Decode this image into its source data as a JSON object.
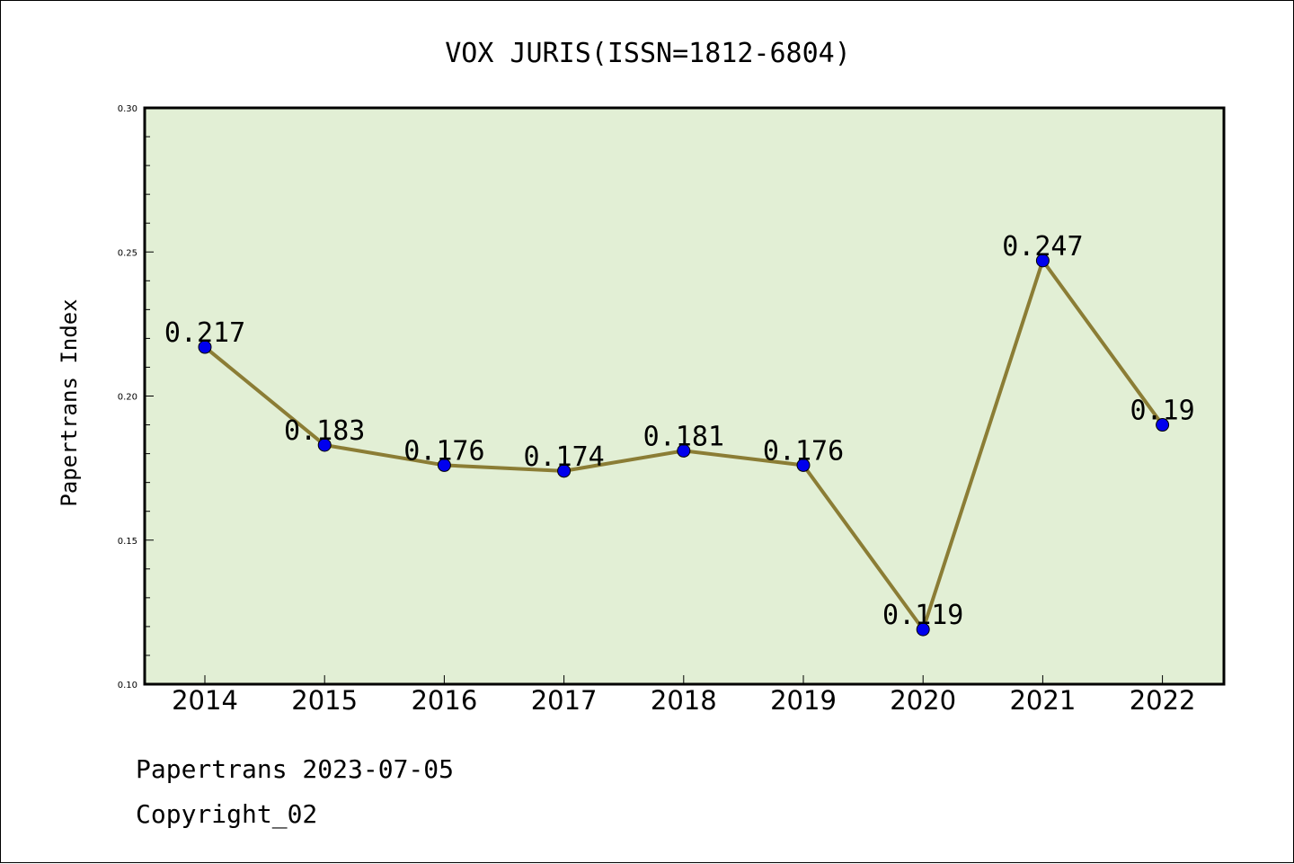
{
  "chart_data": {
    "type": "line",
    "title": "VOX JURIS(ISSN=1812-6804)",
    "xlabel": "",
    "ylabel": "Papertrans Index",
    "categories": [
      "2014",
      "2015",
      "2016",
      "2017",
      "2018",
      "2019",
      "2020",
      "2021",
      "2022"
    ],
    "series": [
      {
        "values": [
          0.217,
          0.183,
          0.176,
          0.174,
          0.181,
          0.176,
          0.119,
          0.247,
          0.19
        ],
        "data_labels": [
          "0.217",
          "0.183",
          "0.176",
          "0.174",
          "0.181",
          "0.176",
          "0.119",
          "0.247",
          "0.19"
        ]
      }
    ],
    "ylim": [
      0.1,
      0.3
    ],
    "yticks": [
      0.1,
      0.15,
      0.2,
      0.25,
      0.3
    ],
    "ytick_labels": [
      "0.10",
      "0.15",
      "0.20",
      "0.25",
      "0.30"
    ],
    "grid": false,
    "colors": {
      "line": "#8b7d35",
      "marker": "#0000ee",
      "plot_background": "#e2efd5"
    }
  },
  "footer": {
    "line1": "Papertrans 2023-07-05",
    "line2": "Copyright_02"
  }
}
